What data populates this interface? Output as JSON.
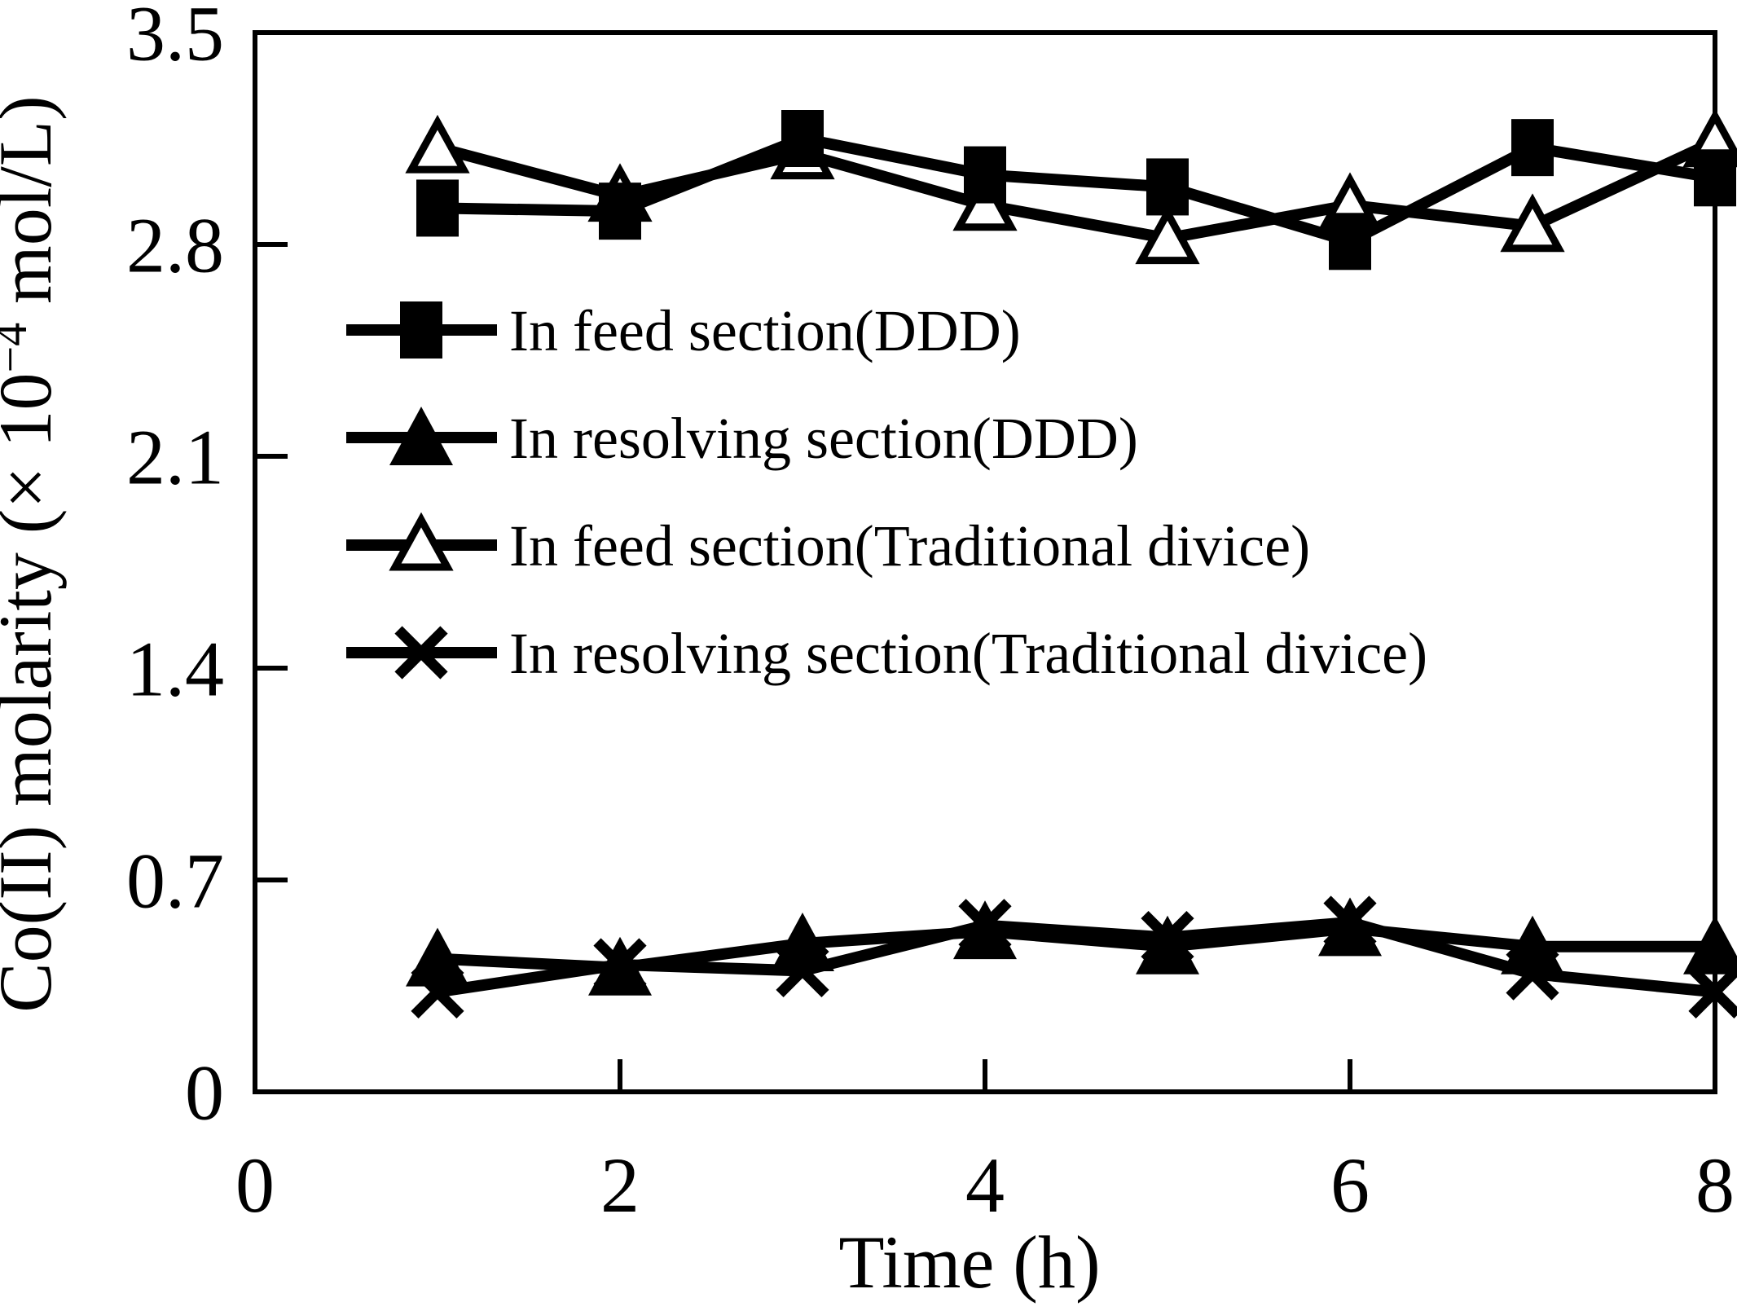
{
  "figure": {
    "background_color": "#ffffff",
    "ink_color": "#000000"
  },
  "chart_data": {
    "type": "line",
    "title": "",
    "xlabel": "Time (h)",
    "ylabel": "Co(II) molarity (× 10−4 mol/L)",
    "ylabel_parts": {
      "prefix": "Co(II) molarity (× 10",
      "superscript": "−4",
      "suffix": " mol/L)"
    },
    "xlim": [
      0,
      8
    ],
    "ylim": [
      0,
      3.5
    ],
    "x_ticks": [
      0,
      2,
      4,
      6,
      8
    ],
    "x_tick_labels": [
      "0",
      "2",
      "4",
      "6",
      "8"
    ],
    "y_ticks": [
      0,
      0.7,
      1.4,
      2.1,
      2.8,
      3.5
    ],
    "y_tick_labels": [
      "0",
      "0.7",
      "1.4",
      "2.1",
      "2.8",
      "3.5"
    ],
    "grid": false,
    "legend_position": "inside-upper-left",
    "x": [
      1,
      2,
      3,
      4,
      5,
      6,
      7,
      8
    ],
    "series": [
      {
        "name": "In feed section(DDD)",
        "marker": "filled-square",
        "values": [
          2.92,
          2.91,
          3.15,
          3.03,
          2.99,
          2.81,
          3.12,
          3.02
        ]
      },
      {
        "name": "In resolving section(DDD)",
        "marker": "filled-triangle",
        "values": [
          0.44,
          0.41,
          0.49,
          0.53,
          0.48,
          0.54,
          0.48,
          0.48
        ]
      },
      {
        "name": "In feed section(Traditional divice)",
        "marker": "open-triangle",
        "values": [
          3.12,
          2.96,
          3.1,
          2.93,
          2.82,
          2.93,
          2.86,
          3.14
        ]
      },
      {
        "name": "In resolving section(Traditional divice)",
        "marker": "x-cross",
        "values": [
          0.33,
          0.42,
          0.4,
          0.55,
          0.51,
          0.56,
          0.39,
          0.33
        ]
      }
    ]
  }
}
